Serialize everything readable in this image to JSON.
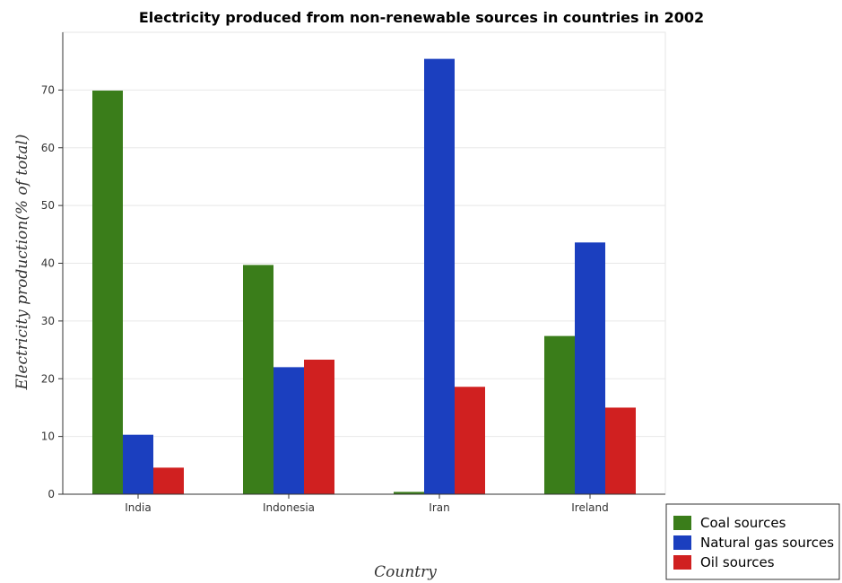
{
  "chart_data": {
    "type": "bar",
    "title": "Electricity produced from non-renewable sources in countries in 2002",
    "xlabel": "Country",
    "ylabel": "Electricity production(% of total)",
    "categories": [
      "India",
      "Indonesia",
      "Iran",
      "Ireland"
    ],
    "series": [
      {
        "name": "Coal sources",
        "color": "#3a7d1a",
        "values": [
          69.9,
          39.7,
          0.4,
          27.4
        ]
      },
      {
        "name": "Natural gas sources",
        "color": "#1b3fbf",
        "values": [
          10.3,
          22.0,
          75.4,
          43.6
        ]
      },
      {
        "name": "Oil sources",
        "color": "#d02020",
        "values": [
          4.6,
          23.3,
          18.6,
          15.0
        ]
      }
    ],
    "ylim": [
      0,
      80
    ],
    "yticks": [
      0,
      10,
      20,
      30,
      40,
      50,
      60,
      70
    ],
    "grid": true,
    "legend_position": "bottom-right"
  }
}
